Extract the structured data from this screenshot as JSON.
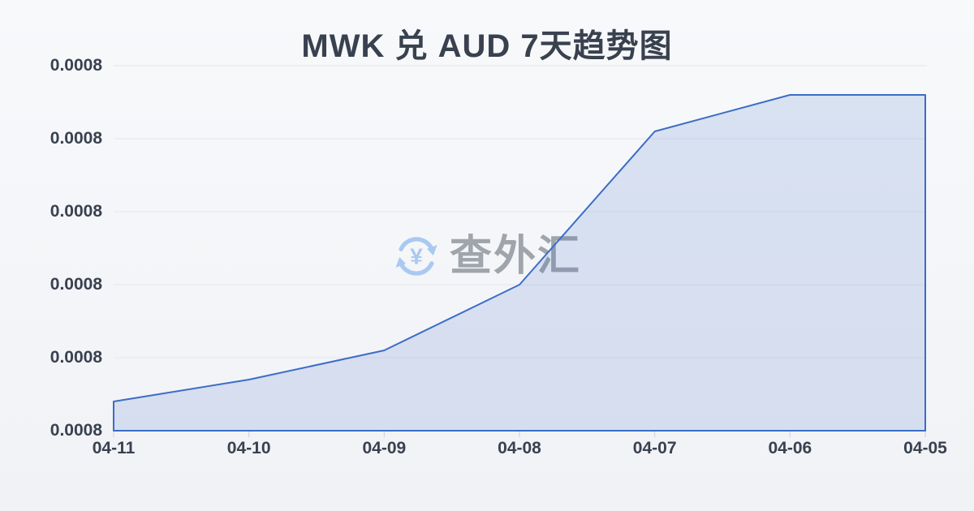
{
  "page": {
    "title": "MWK 兑 AUD 7天趋势图"
  },
  "watermark": {
    "label": "查外汇",
    "currency_symbol": "¥",
    "icon": "currency-exchange-icon"
  },
  "colors": {
    "background_top": "#f7f9fb",
    "background_bottom": "#f0f2f6",
    "title_text": "#39414f",
    "axis_label": "#39414f",
    "gridline": "#e4e7ec",
    "axis_line": "#d5d9e0",
    "tick": "#ccd1d9",
    "line": "#3c6dc5",
    "area_fill": "rgba(68,114,196,0.16)",
    "watermark_text": "#a0a4ab",
    "watermark_icon": "#aac9f0"
  },
  "chart_data": {
    "type": "area",
    "title": "MWK 兑 AUD 7天趋势图",
    "categories": [
      "04-11",
      "04-10",
      "04-09",
      "04-08",
      "04-07",
      "04-06",
      "04-05"
    ],
    "values": [
      0.000804,
      0.000807,
      0.000811,
      0.00082,
      0.000841,
      0.000846,
      0.000846
    ],
    "xlabel": "",
    "ylabel": "",
    "ylim": [
      0.0008,
      0.00085
    ],
    "y_tick_values": [
      0.0008,
      0.00081,
      0.00082,
      0.00083,
      0.00084,
      0.00085
    ],
    "y_tick_labels": [
      "0.0008",
      "0.0008",
      "0.0008",
      "0.0008",
      "0.0008",
      "0.0008"
    ],
    "grid": true,
    "legend": false
  }
}
